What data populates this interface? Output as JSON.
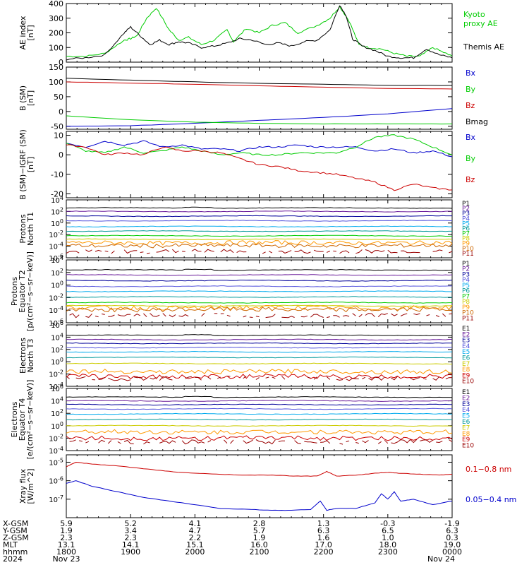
{
  "colors": {
    "black": "#000000",
    "red": "#cc0000",
    "green": "#00cc00",
    "blue": "#0000cc",
    "purple": "#6a1b9a",
    "navy": "#000099",
    "violet": "#5555dd",
    "cyan": "#00aaee",
    "teal": "#009999",
    "yellow": "#cccc00",
    "orange": "#ff9900",
    "darkorange": "#cc6600",
    "darkred": "#990000"
  },
  "chart_data": [
    {
      "type": "line",
      "ylabel": "AE index [nT]",
      "ylim": [
        0,
        400
      ],
      "yticks": [
        0,
        100,
        200,
        300,
        400
      ],
      "legend": [
        "Kyoto proxy AE",
        "Themis AE"
      ],
      "series": [
        {
          "name": "Kyoto proxy AE",
          "color": "#00cc00",
          "t": [
            0,
            0.3,
            0.6,
            0.9,
            1.0,
            1.1,
            1.25,
            1.4,
            1.6,
            1.75,
            1.9,
            2.1,
            2.3,
            2.5,
            2.6,
            2.8,
            3.0,
            3.2,
            3.4,
            3.6,
            3.9,
            4.1,
            4.25,
            4.4,
            4.55,
            4.7,
            4.9,
            5.1,
            5.3,
            5.5,
            5.7,
            5.9,
            6.0
          ],
          "v": [
            40,
            40,
            60,
            150,
            160,
            180,
            300,
            370,
            220,
            150,
            170,
            120,
            150,
            220,
            140,
            230,
            200,
            250,
            270,
            200,
            250,
            300,
            380,
            280,
            120,
            100,
            90,
            60,
            40,
            40,
            100,
            60,
            40
          ]
        },
        {
          "name": "Themis AE",
          "color": "#000000",
          "t": [
            0,
            0.3,
            0.6,
            0.9,
            1.0,
            1.15,
            1.3,
            1.45,
            1.6,
            1.75,
            1.9,
            2.1,
            2.3,
            2.5,
            2.7,
            2.9,
            3.1,
            3.3,
            3.5,
            3.7,
            3.9,
            4.1,
            4.25,
            4.35,
            4.45,
            4.6,
            4.8,
            5.0,
            5.2,
            5.4,
            5.6,
            5.8,
            6.0
          ],
          "v": [
            20,
            30,
            50,
            200,
            240,
            180,
            120,
            150,
            120,
            140,
            130,
            100,
            110,
            130,
            160,
            150,
            120,
            130,
            110,
            140,
            150,
            220,
            390,
            320,
            160,
            110,
            80,
            40,
            30,
            30,
            90,
            50,
            30
          ]
        }
      ]
    },
    {
      "type": "line",
      "ylabel": "B (SM) [nT]",
      "ylim": [
        -60,
        150
      ],
      "yticks": [
        -50,
        0,
        50,
        100,
        150
      ],
      "legend": [
        "Bx",
        "By",
        "Bz",
        "Bmag"
      ],
      "series": [
        {
          "name": "Bx",
          "color": "#0000cc",
          "t": [
            0,
            1,
            2,
            3,
            4,
            5,
            6
          ],
          "v": [
            -50,
            -48,
            -40,
            -30,
            -20,
            -8,
            10
          ]
        },
        {
          "name": "By",
          "color": "#00cc00",
          "t": [
            0,
            1,
            2,
            3,
            4,
            5,
            6
          ],
          "v": [
            -15,
            -28,
            -36,
            -40,
            -42,
            -42,
            -42
          ]
        },
        {
          "name": "Bz",
          "color": "#cc0000",
          "t": [
            0,
            1,
            2,
            3,
            4,
            5,
            6
          ],
          "v": [
            100,
            96,
            92,
            87,
            82,
            78,
            76
          ]
        },
        {
          "name": "Bmag",
          "color": "#000000",
          "t": [
            0,
            1,
            2,
            3,
            4,
            5,
            6
          ],
          "v": [
            112,
            106,
            100,
            95,
            92,
            88,
            88
          ]
        }
      ]
    },
    {
      "type": "line",
      "ylabel": "B (SM)-IGRF (SM) [nT]",
      "ylim": [
        -22,
        12
      ],
      "yticks": [
        -20,
        -10,
        0,
        10
      ],
      "legend": [
        "Bx",
        "By",
        "Bz"
      ],
      "series": [
        {
          "name": "Bx",
          "color": "#0000cc",
          "t": [
            0,
            0.3,
            0.6,
            0.9,
            1.2,
            1.5,
            1.8,
            2.1,
            2.4,
            2.7,
            3.0,
            3.3,
            3.6,
            3.9,
            4.2,
            4.5,
            4.8,
            5.1,
            5.4,
            5.7,
            6.0
          ],
          "v": [
            6,
            4,
            7,
            5,
            7,
            4,
            5,
            3,
            3,
            2,
            4,
            4,
            5,
            4,
            4,
            4,
            2,
            3,
            1,
            2,
            -1
          ]
        },
        {
          "name": "By",
          "color": "#00cc00",
          "t": [
            0,
            0.3,
            0.6,
            0.9,
            1.2,
            1.5,
            1.8,
            2.1,
            2.4,
            2.7,
            3.0,
            3.3,
            3.6,
            3.9,
            4.2,
            4.5,
            4.8,
            5.1,
            5.4,
            5.7,
            6.0
          ],
          "v": [
            6,
            2,
            1,
            4,
            1,
            2,
            4,
            2,
            0,
            1,
            0,
            0,
            1,
            1,
            1,
            4,
            9,
            10,
            8,
            4,
            0
          ]
        },
        {
          "name": "Bz",
          "color": "#cc0000",
          "t": [
            0,
            0.3,
            0.6,
            0.9,
            1.2,
            1.5,
            1.8,
            2.1,
            2.4,
            2.7,
            3.0,
            3.3,
            3.6,
            3.9,
            4.2,
            4.5,
            4.8,
            5.1,
            5.4,
            5.7,
            6.0
          ],
          "v": [
            5,
            4,
            0,
            1,
            0,
            4,
            2,
            2,
            1,
            -2,
            -5,
            -6,
            -8,
            -9,
            -10,
            -12,
            -14,
            -18,
            -15,
            -17,
            -18
          ]
        }
      ]
    },
    {
      "type": "line",
      "ylabel": "Protons North T1",
      "ylim": [
        -6,
        4
      ],
      "yticks_exp": [
        -6,
        -4,
        -2,
        0,
        2,
        4
      ],
      "log_scale": true,
      "legend": [
        "P1",
        "P2",
        "P3",
        "P4",
        "P5",
        "P6",
        "P7",
        "P8",
        "P9",
        "P10",
        "P11"
      ],
      "levels": [
        2.6,
        2.0,
        1.2,
        0.4,
        -0.6,
        -1.4,
        -2.2,
        -2.8,
        -3.4,
        -3.9,
        -4.9
      ],
      "colors": [
        "#000000",
        "#6a1b9a",
        "#000099",
        "#5555dd",
        "#00aaee",
        "#009999",
        "#00cc00",
        "#cccc00",
        "#ff9900",
        "#cc6600",
        "#990000"
      ]
    },
    {
      "type": "line",
      "ylabel": "Protons Equator T2 [p/(cm²-s-sr-keV)]",
      "ylim": [
        -6,
        4
      ],
      "yticks_exp": [
        -6,
        -4,
        -2,
        0,
        2,
        4
      ],
      "log_scale": true,
      "legend": [
        "P1",
        "P2",
        "P3",
        "P4",
        "P5",
        "P6",
        "P7",
        "P8",
        "P9",
        "P10",
        "P11"
      ],
      "levels": [
        2.4,
        1.6,
        0.7,
        -0.2,
        -1.0,
        -1.9,
        -2.8,
        -3.3,
        -3.6,
        -3.9,
        -4.8
      ],
      "colors": [
        "#000000",
        "#6a1b9a",
        "#000099",
        "#5555dd",
        "#00aaee",
        "#009999",
        "#00cc00",
        "#cccc00",
        "#ff9900",
        "#cc6600",
        "#990000"
      ]
    },
    {
      "type": "line",
      "ylabel": "Electrons North T3",
      "ylim": [
        -4,
        6
      ],
      "yticks_exp": [
        -4,
        -2,
        0,
        2,
        4,
        6
      ],
      "log_scale": true,
      "legend": [
        "E1",
        "E2",
        "E3",
        "E4",
        "E5",
        "E6",
        "E7",
        "E8",
        "E9",
        "E10"
      ],
      "levels": [
        4.3,
        3.6,
        3.0,
        2.3,
        1.6,
        0.7,
        -0.3,
        -1.6,
        -2.4,
        -2.7
      ],
      "colors": [
        "#000000",
        "#6a1b9a",
        "#000099",
        "#5555dd",
        "#00aaee",
        "#009999",
        "#cccc00",
        "#ff9900",
        "#cc0000",
        "#990000"
      ]
    },
    {
      "type": "line",
      "ylabel": "Electrons Equator T4 [e/(cm²-s-sr-keV)]",
      "ylim": [
        -4,
        6
      ],
      "yticks_exp": [
        -4,
        -2,
        0,
        2,
        4,
        6
      ],
      "log_scale": true,
      "legend": [
        "E1",
        "E2",
        "E3",
        "E4",
        "E5",
        "E6",
        "E7",
        "E8",
        "E9",
        "E10"
      ],
      "levels": [
        4.6,
        4.0,
        3.4,
        2.7,
        1.9,
        1.0,
        0.0,
        -1.0,
        -2.0,
        -2.6
      ],
      "colors": [
        "#000000",
        "#6a1b9a",
        "#000099",
        "#5555dd",
        "#00aaee",
        "#009999",
        "#cccc00",
        "#ff9900",
        "#cc0000",
        "#990000"
      ]
    },
    {
      "type": "line",
      "ylabel": "Xray flux [W/m^2]",
      "ylim": [
        -8,
        -4.6
      ],
      "yticks_exp": [
        -7,
        -6,
        -5
      ],
      "log_scale": true,
      "legend": [
        "0.1-0.8 nm",
        "0.05-0.4 nm"
      ],
      "series": [
        {
          "name": "0.1-0.8 nm",
          "color": "#cc0000",
          "t": [
            0,
            0.15,
            0.4,
            0.8,
            1.2,
            1.6,
            2.0,
            2.4,
            2.8,
            3.2,
            3.6,
            3.9,
            4.05,
            4.2,
            4.5,
            4.8,
            5.0,
            5.2,
            5.5,
            5.8,
            6.0
          ],
          "v": [
            -5.25,
            -5.0,
            -5.1,
            -5.2,
            -5.35,
            -5.5,
            -5.6,
            -5.65,
            -5.7,
            -5.7,
            -5.75,
            -5.75,
            -5.5,
            -5.75,
            -5.7,
            -5.6,
            -5.55,
            -5.6,
            -5.65,
            -5.7,
            -5.65
          ]
        },
        {
          "name": "0.05-0.4 nm",
          "color": "#0000cc",
          "t": [
            0,
            0.15,
            0.4,
            0.8,
            1.2,
            1.6,
            2.0,
            2.4,
            2.8,
            3.2,
            3.5,
            3.8,
            3.95,
            4.05,
            4.2,
            4.5,
            4.8,
            4.9,
            5.0,
            5.1,
            5.2,
            5.4,
            5.7,
            6.0
          ],
          "v": [
            -6.15,
            -6.0,
            -6.3,
            -6.6,
            -6.9,
            -7.1,
            -7.3,
            -7.5,
            -7.55,
            -7.6,
            -7.6,
            -7.55,
            -7.1,
            -7.6,
            -7.5,
            -7.5,
            -7.2,
            -6.7,
            -7.0,
            -6.6,
            -7.1,
            -7.0,
            -7.3,
            -7.1
          ]
        }
      ]
    }
  ],
  "legends": {
    "ae": [
      "Kyoto proxy AE",
      "Themis AE"
    ],
    "b": [
      "Bx",
      "By",
      "Bz",
      "Bmag"
    ],
    "db": [
      "Bx",
      "By",
      "Bz"
    ],
    "p": [
      "P1",
      "P2",
      "P3",
      "P4",
      "P5",
      "P6",
      "P7",
      "P8",
      "P9",
      "P10",
      "P11"
    ],
    "e": [
      "E1",
      "E2",
      "E3",
      "E4",
      "E5",
      "E6",
      "E7",
      "E8",
      "E9",
      "E10"
    ],
    "xray": [
      "0.1−0.8 nm",
      "0.05−0.4 nm"
    ]
  },
  "ylabels": [
    [
      "AE index",
      "[nT]"
    ],
    [
      "B (SM)",
      "[nT]"
    ],
    [
      "B (SM)−IGRF (SM)",
      "[nT]"
    ],
    [
      "Protons",
      "North T1"
    ],
    [
      "Protons",
      "Equator T2",
      "[p/(cm²−s−sr−keV)]"
    ],
    [
      "Electrons",
      "North T3"
    ],
    [
      "Electrons",
      "Equator T4",
      "[e/(cm²−s−sr−keV)]"
    ],
    [
      "Xray flux",
      "[W/m^2]"
    ]
  ],
  "axis_table": {
    "row_labels": [
      "X-GSM",
      "Y-GSM",
      "Z-GSM",
      "MLT",
      "hhmm",
      "2024"
    ],
    "columns": [
      [
        "5.9",
        "1.9",
        "2.3",
        "13.1",
        "1800",
        "Nov 23"
      ],
      [
        "5.2",
        "3.4",
        "2.3",
        "14.1",
        "1900",
        ""
      ],
      [
        "4.1",
        "4.7",
        "2.2",
        "15.1",
        "2000",
        ""
      ],
      [
        "2.8",
        "5.7",
        "1.9",
        "16.0",
        "2100",
        ""
      ],
      [
        "1.3",
        "6.3",
        "1.6",
        "17.0",
        "2200",
        ""
      ],
      [
        "-0.3",
        "6.5",
        "1.0",
        "18.0",
        "2300",
        ""
      ],
      [
        "-1.9",
        "6.3",
        "0.3",
        "19.0",
        "0000",
        "Nov 24"
      ]
    ]
  }
}
